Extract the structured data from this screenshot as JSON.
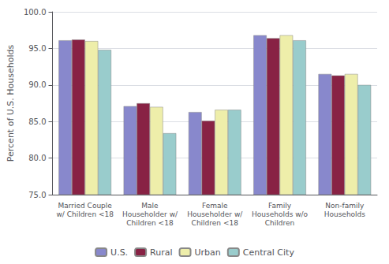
{
  "chart_data": {
    "type": "bar",
    "ylabel": "Percent of U.S. Households",
    "categories": [
      "Married Couple\nw/ Children <18",
      "Male\nHouseholder w/\nChildren <18",
      "Female\nHouseholder w/\nChildren <18",
      "Family\nHouseholds w/o\nChildren",
      "Non-family\nHouseholds"
    ],
    "series": [
      {
        "name": "U.S.",
        "color": "#8888cc",
        "values": [
          96.1,
          87.1,
          86.3,
          96.8,
          91.5
        ]
      },
      {
        "name": "Rural",
        "color": "#882244",
        "values": [
          96.2,
          87.5,
          85.1,
          96.4,
          91.3
        ]
      },
      {
        "name": "Urban",
        "color": "#eeeeaa",
        "values": [
          96.0,
          87.0,
          86.6,
          96.8,
          91.5
        ]
      },
      {
        "name": "Central City",
        "color": "#99cccc",
        "values": [
          94.8,
          83.4,
          86.6,
          96.1,
          90.0
        ]
      }
    ],
    "ylim": [
      75.0,
      100.0
    ],
    "yticks": [
      {
        "value": 75,
        "label": "75.0"
      },
      {
        "value": 80,
        "label": "80.0"
      },
      {
        "value": 85,
        "label": "85.0"
      },
      {
        "value": 90,
        "label": "90.0"
      },
      {
        "value": 95,
        "label": "95.0"
      },
      {
        "value": 100,
        "label": "100.0"
      }
    ],
    "grid": true,
    "legend": "bottom"
  }
}
